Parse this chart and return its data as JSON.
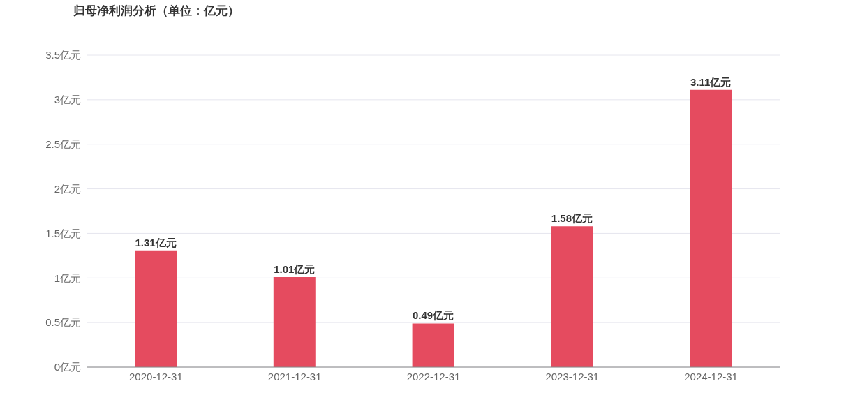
{
  "chart_data": {
    "type": "bar",
    "title": "归母净利润分析（单位：亿元）",
    "categories": [
      "2020-12-31",
      "2021-12-31",
      "2022-12-31",
      "2023-12-31",
      "2024-12-31"
    ],
    "values": [
      1.31,
      1.01,
      0.49,
      1.58,
      3.11
    ],
    "value_labels": [
      "1.31亿元",
      "1.01亿元",
      "0.49亿元",
      "1.58亿元",
      "3.11亿元"
    ],
    "color": "#e54b5f",
    "ylim": [
      0,
      3.5
    ],
    "yticks": [
      {
        "value": 0,
        "label": "0亿元"
      },
      {
        "value": 0.5,
        "label": "0.5亿元"
      },
      {
        "value": 1,
        "label": "1亿元"
      },
      {
        "value": 1.5,
        "label": "1.5亿元"
      },
      {
        "value": 2,
        "label": "2亿元"
      },
      {
        "value": 2.5,
        "label": "2.5亿元"
      },
      {
        "value": 3,
        "label": "3亿元"
      },
      {
        "value": 3.5,
        "label": "3.5亿元"
      }
    ],
    "grid": "y",
    "legend": false
  }
}
